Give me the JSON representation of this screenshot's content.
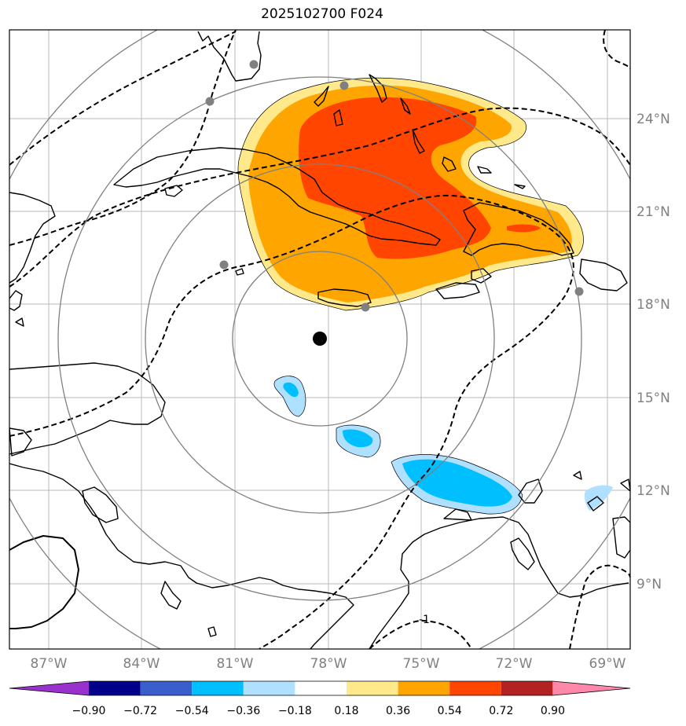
{
  "title": "2025102700 F024",
  "lat_labels": [
    "24°N",
    "21°N",
    "18°N",
    "15°N",
    "12°N",
    "9°N"
  ],
  "lon_labels": [
    "87°W",
    "84°W",
    "81°W",
    "78°W",
    "75°W",
    "72°W",
    "69°W"
  ],
  "colorbar": {
    "colors": [
      "#9932cc",
      "#00008b",
      "#3a5fcd",
      "#00bfff",
      "#b0e0ff",
      "#ffffff",
      "#ffe98a",
      "#ffa500",
      "#ff4500",
      "#b22222",
      "#ff88aa"
    ],
    "ticks": [
      "−0.90",
      "−0.72",
      "−0.54",
      "−0.36",
      "−0.18",
      "0.18",
      "0.36",
      "0.54",
      "0.72",
      "0.90"
    ]
  },
  "contour_label": "-1",
  "storm_center": {
    "lat": 17.0,
    "lon": -78.0
  },
  "range_rings_count": 4
}
